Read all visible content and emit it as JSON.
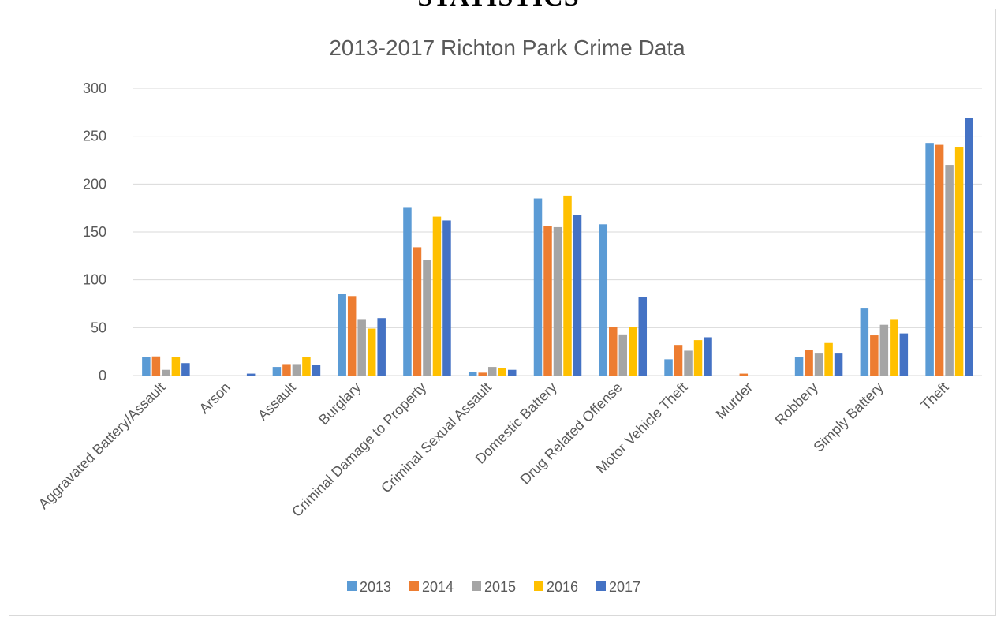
{
  "document": {
    "heading": "STATISTICS"
  },
  "colors": {
    "2013": "#5b9bd5",
    "2014": "#ed7d31",
    "2015": "#a5a5a5",
    "2016": "#ffc000",
    "2017": "#4472c4",
    "gridline": "#d9d9d9",
    "text": "#595959"
  },
  "chart_data": {
    "type": "bar",
    "title": "2013-2017 Richton Park Crime Data",
    "xlabel": "",
    "ylabel": "",
    "ylim": [
      0,
      300
    ],
    "yticks": [
      "0",
      "50",
      "100",
      "150",
      "200",
      "250",
      "300"
    ],
    "grid": true,
    "legend_position": "bottom",
    "categories": [
      "Aggravated Battery/Assault",
      "Arson",
      "Assault",
      "Burglary",
      "Criminal Damage to Property",
      "Criminal Sexual Assault",
      "Domestic Battery",
      "Drug Related Offense",
      "Motor Vehicle Theft",
      "Murder",
      "Robbery",
      "Simply Battery",
      "Theft"
    ],
    "series": [
      {
        "name": "2013",
        "values": [
          19,
          0,
          9,
          85,
          176,
          4,
          185,
          158,
          17,
          0,
          19,
          70,
          243
        ]
      },
      {
        "name": "2014",
        "values": [
          20,
          0,
          12,
          83,
          134,
          3,
          156,
          51,
          32,
          2,
          27,
          42,
          241
        ]
      },
      {
        "name": "2015",
        "values": [
          6,
          0,
          12,
          59,
          121,
          9,
          155,
          43,
          26,
          0,
          23,
          53,
          220
        ]
      },
      {
        "name": "2016",
        "values": [
          19,
          0,
          19,
          49,
          166,
          8,
          188,
          51,
          37,
          0,
          34,
          59,
          239
        ]
      },
      {
        "name": "2017",
        "values": [
          13,
          2,
          11,
          60,
          162,
          6,
          168,
          82,
          40,
          0,
          23,
          44,
          269
        ]
      }
    ]
  }
}
